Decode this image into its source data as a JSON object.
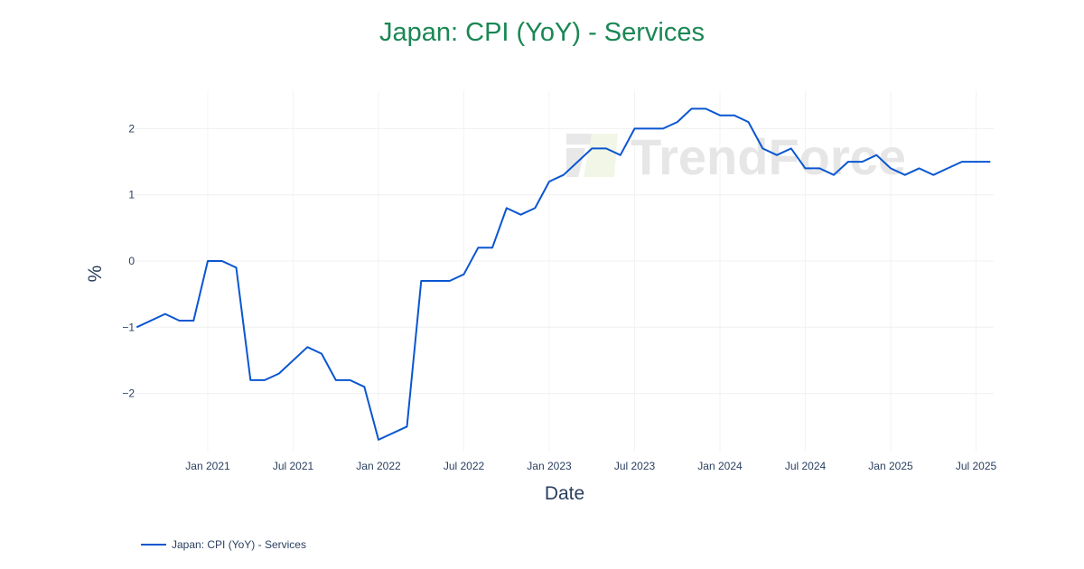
{
  "chart_data": {
    "type": "line",
    "title": "Japan: CPI (YoY) - Services",
    "xlabel": "Date",
    "ylabel": "%",
    "ylim": [
      -2.9,
      2.6
    ],
    "yticks": [
      2,
      1,
      0,
      -1,
      -2
    ],
    "ytick_labels": [
      "2",
      "1",
      "0",
      "−1",
      "−2"
    ],
    "xticks": [
      "Jan 2021",
      "Jul 2021",
      "Jan 2022",
      "Jul 2022",
      "Jan 2023",
      "Jul 2023",
      "Jan 2024",
      "Jul 2024",
      "Jan 2025",
      "Jul 2025"
    ],
    "grid": true,
    "legend_position": "bottom-left",
    "series": [
      {
        "name": "Japan: CPI (YoY) - Services",
        "color": "#0a56d1",
        "x": [
          "2020-08",
          "2020-10",
          "2020-11",
          "2020-12",
          "2021-01",
          "2021-02",
          "2021-03",
          "2021-04",
          "2021-05",
          "2021-06",
          "2021-08",
          "2021-09",
          "2021-10",
          "2021-11",
          "2021-12",
          "2022-01",
          "2022-03",
          "2022-04",
          "2022-05",
          "2022-06",
          "2022-07",
          "2022-08",
          "2022-09",
          "2022-10",
          "2022-11",
          "2022-12",
          "2023-01",
          "2023-02",
          "2023-03",
          "2023-04",
          "2023-05",
          "2023-06",
          "2023-07",
          "2023-08",
          "2023-09",
          "2023-10",
          "2023-11",
          "2023-12",
          "2024-01",
          "2024-02",
          "2024-03",
          "2024-04",
          "2024-05",
          "2024-06",
          "2024-07",
          "2024-08",
          "2024-09",
          "2024-10",
          "2024-11",
          "2024-12",
          "2025-01",
          "2025-02",
          "2025-03",
          "2025-04",
          "2025-05",
          "2025-06",
          "2025-07",
          "2025-08"
        ],
        "values": [
          -1.0,
          -0.8,
          -0.9,
          -0.9,
          0.0,
          0.0,
          -0.1,
          -1.8,
          -1.8,
          -1.7,
          -1.3,
          -1.4,
          -1.8,
          -1.8,
          -1.9,
          -2.7,
          -2.5,
          -0.3,
          -0.3,
          -0.3,
          -0.2,
          0.2,
          0.2,
          0.8,
          0.7,
          0.8,
          1.2,
          1.3,
          1.5,
          1.7,
          1.7,
          1.6,
          2.0,
          2.0,
          2.0,
          2.1,
          2.3,
          2.3,
          2.2,
          2.2,
          2.1,
          1.7,
          1.6,
          1.7,
          1.4,
          1.4,
          1.3,
          1.5,
          1.5,
          1.6,
          1.4,
          1.3,
          1.4,
          1.3,
          1.4,
          1.5,
          1.5,
          1.5
        ]
      }
    ]
  },
  "watermark": "TrendForce",
  "legend": {
    "label": "Japan: CPI (YoY) - Services"
  }
}
